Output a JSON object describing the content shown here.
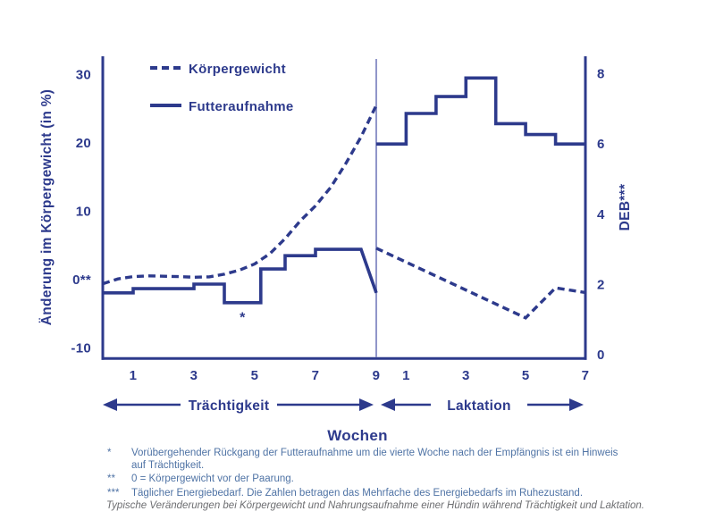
{
  "legend": {
    "items": [
      {
        "label": "Körpergewicht",
        "style": "dashed"
      },
      {
        "label": "Futteraufnahme",
        "style": "solid"
      }
    ]
  },
  "chart_data": {
    "type": "line",
    "title": "",
    "colors": {
      "primary": "#2d3a8c",
      "divider": "#9096c9",
      "footnote_text": "#4f73a5",
      "caption_text": "#6d6e71"
    },
    "left_axis": {
      "label": "Änderung im Körpergewicht (in %)",
      "range": [
        -10,
        30
      ],
      "ticks": [
        {
          "value": 30,
          "label": "30"
        },
        {
          "value": 20,
          "label": "20"
        },
        {
          "value": 10,
          "label": "10"
        },
        {
          "value": 0,
          "label": "0**"
        },
        {
          "value": -10,
          "label": "-10"
        }
      ]
    },
    "right_axis": {
      "label": "DEB***",
      "range": [
        0,
        8
      ],
      "ticks": [
        {
          "value": 8,
          "label": "8"
        },
        {
          "value": 6,
          "label": "6"
        },
        {
          "value": 4,
          "label": "4"
        },
        {
          "value": 2,
          "label": "2"
        },
        {
          "value": 0,
          "label": "0"
        }
      ]
    },
    "x_axis": {
      "label": "Wochen",
      "pregnancy": {
        "name": "Trächtigkeit",
        "ticks": [
          1,
          3,
          5,
          7,
          9
        ],
        "max": 9
      },
      "lactation": {
        "name": "Laktation",
        "ticks": [
          1,
          3,
          5,
          7
        ],
        "max": 7
      }
    },
    "series": [
      {
        "name": "Körpergewicht",
        "style": "dashed",
        "axis": "percent",
        "pregnancy": [
          [
            0,
            -0.6
          ],
          [
            0.5,
            0.1
          ],
          [
            1,
            0.45
          ],
          [
            1.5,
            0.55
          ],
          [
            2,
            0.5
          ],
          [
            2.5,
            0.45
          ],
          [
            3,
            0.35
          ],
          [
            3.5,
            0.4
          ],
          [
            4,
            0.8
          ],
          [
            4.5,
            1.4
          ],
          [
            5,
            2.3
          ],
          [
            5.5,
            3.8
          ],
          [
            6,
            6.0
          ],
          [
            6.5,
            8.6
          ],
          [
            7,
            10.8
          ],
          [
            7.5,
            13.5
          ],
          [
            8,
            17.0
          ],
          [
            8.5,
            20.9
          ],
          [
            9,
            25.5
          ]
        ],
        "lactation": [
          [
            0,
            4.6
          ],
          [
            5,
            -5.6
          ],
          [
            6,
            -1.2
          ],
          [
            7,
            -1.9
          ]
        ]
      },
      {
        "name": "Futteraufnahme",
        "style": "solid",
        "axis": "deb",
        "pregnancy": [
          [
            0,
            1.76
          ],
          [
            1,
            1.76
          ],
          [
            1,
            1.88
          ],
          [
            3,
            1.88
          ],
          [
            3,
            2.01
          ],
          [
            4,
            2.01
          ],
          [
            4,
            1.48
          ],
          [
            5.2,
            1.48
          ],
          [
            5.2,
            2.44
          ],
          [
            6,
            2.44
          ],
          [
            6,
            2.82
          ],
          [
            7,
            2.82
          ],
          [
            7,
            3.0
          ],
          [
            8.5,
            3.0
          ],
          [
            9,
            1.76
          ]
        ],
        "lactation": [
          [
            0,
            6.0
          ],
          [
            1,
            6.0
          ],
          [
            1,
            6.87
          ],
          [
            2,
            6.87
          ],
          [
            2,
            7.35
          ],
          [
            3,
            7.35
          ],
          [
            3,
            7.88
          ],
          [
            4,
            7.88
          ],
          [
            4,
            6.58
          ],
          [
            5,
            6.58
          ],
          [
            5,
            6.27
          ],
          [
            6,
            6.27
          ],
          [
            6,
            6.0
          ],
          [
            7,
            6.0
          ]
        ]
      }
    ],
    "annotation": {
      "text": "*",
      "phase": "pregnancy",
      "week": 4.6,
      "percent": -6.2
    }
  },
  "footnotes": [
    {
      "marker": "*",
      "text": "Vorübergehender Rückgang der Futteraufnahme um die vierte Woche nach der Empfängnis ist ein Hinweis auf Trächtigkeit."
    },
    {
      "marker": "**",
      "text": "0 = Körpergewicht vor der Paarung."
    },
    {
      "marker": "***",
      "text": "Täglicher Energiebedarf. Die Zahlen betragen das Mehrfache des Energiebedarfs im Ruhezustand."
    }
  ],
  "caption": "Typische Veränderungen bei Körpergewicht und Nahrungsaufnahme einer Hündin während Trächtigkeit und Laktation."
}
